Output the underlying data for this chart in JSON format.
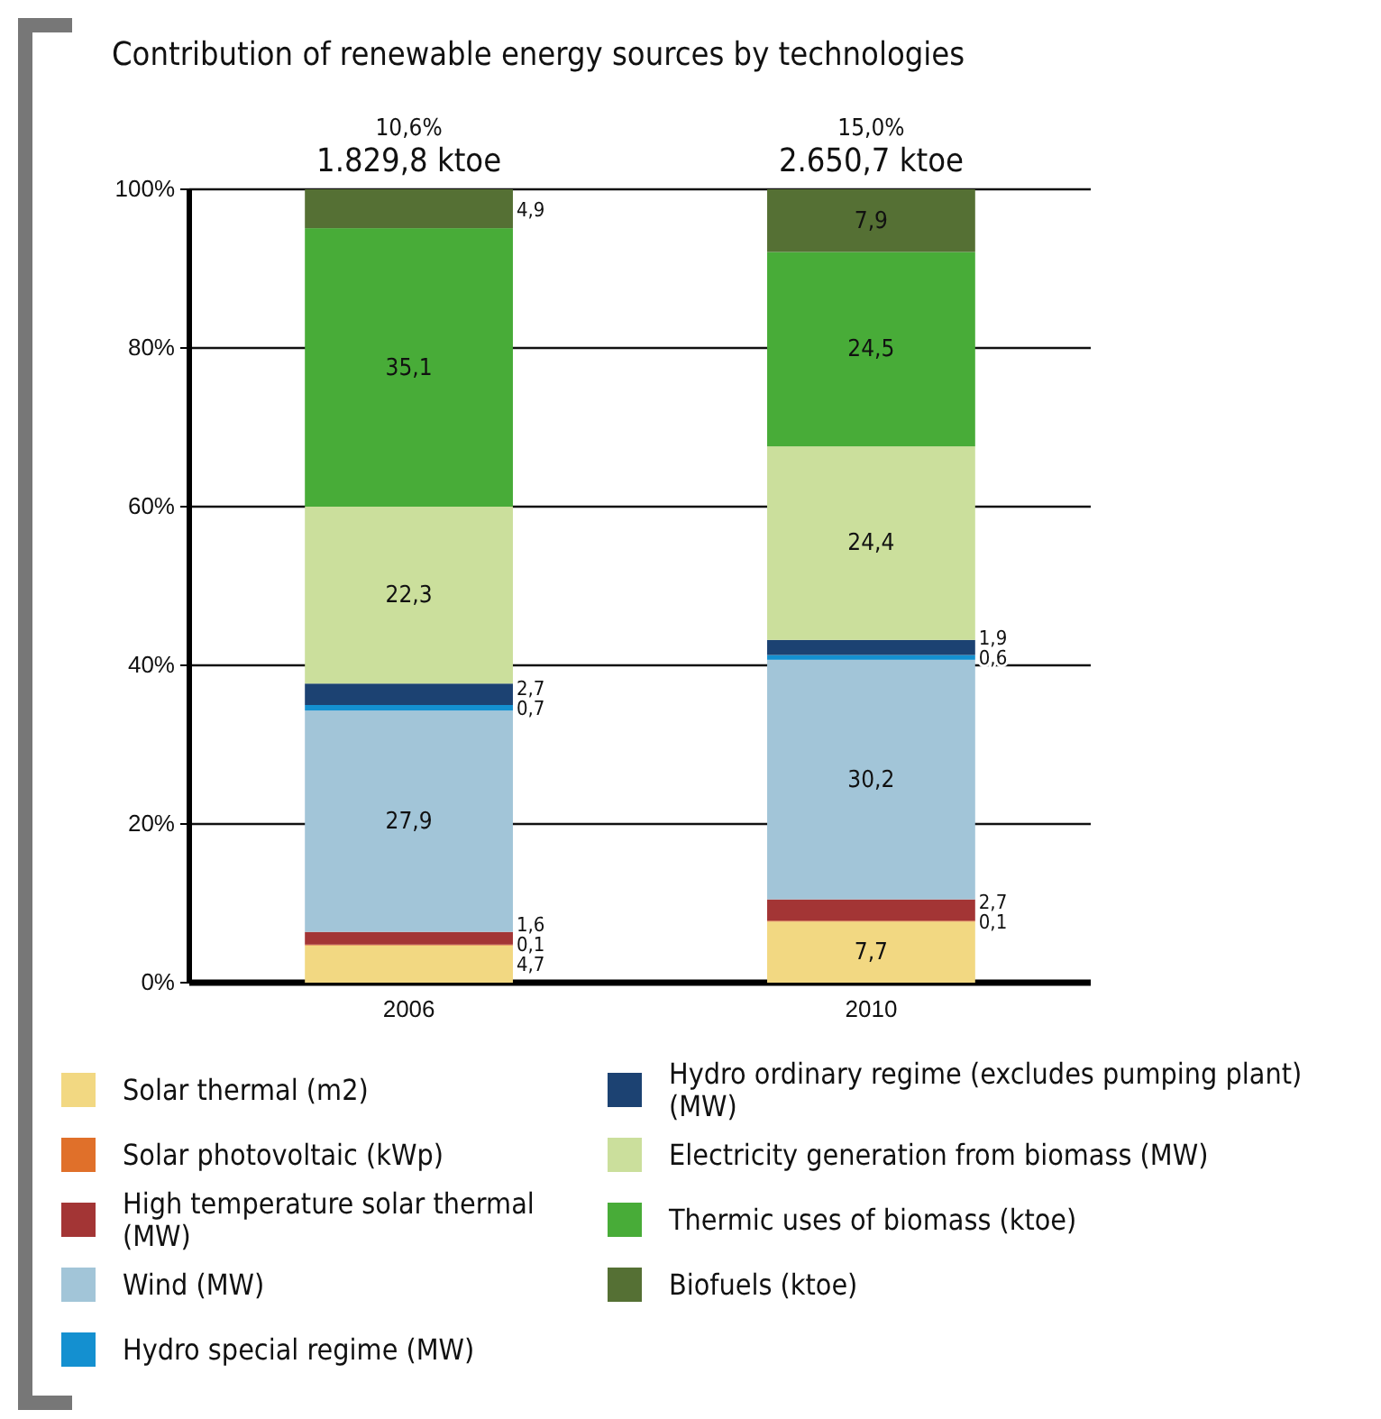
{
  "chart_data": {
    "type": "bar",
    "title": "Contribution of renewable energy sources by technologies",
    "categories": [
      "2006",
      "2010"
    ],
    "stacked": true,
    "grid": "y",
    "legend": "bottom",
    "ylim": [
      0,
      100
    ],
    "yticks": [
      {
        "value": 0,
        "label": "0%"
      },
      {
        "value": 20,
        "label": "20%"
      },
      {
        "value": 40,
        "label": "40%"
      },
      {
        "value": 60,
        "label": "60%"
      },
      {
        "value": 80,
        "label": "80%"
      },
      {
        "value": 100,
        "label": "100%"
      }
    ],
    "series": [
      {
        "name": "Solar thermal (m2)",
        "color": "#f2d882",
        "values": [
          4.7,
          7.7
        ],
        "value_labels": [
          "4,7",
          "7,7"
        ]
      },
      {
        "name": "Solar photovoltaic (kWp)",
        "color": "#e0702a",
        "values": [
          0.1,
          0.1
        ],
        "value_labels": [
          "0,1",
          "0,1"
        ]
      },
      {
        "name": "High temperature solar thermal (MW)",
        "color": "#a33535",
        "values": [
          1.6,
          2.7
        ],
        "value_labels": [
          "1,6",
          "2,7"
        ]
      },
      {
        "name": "Wind (MW)",
        "color": "#a2c5d8",
        "values": [
          27.9,
          30.2
        ],
        "value_labels": [
          "27,9",
          "30,2"
        ]
      },
      {
        "name": "Hydro special regime (MW)",
        "color": "#1490d0",
        "values": [
          0.7,
          0.6
        ],
        "value_labels": [
          "0,7",
          "0,6"
        ]
      },
      {
        "name": "Hydro ordinary regime (excludes pumping plant) (MW)",
        "color": "#1c4272",
        "values": [
          2.7,
          1.9
        ],
        "value_labels": [
          "2,7",
          "1,9"
        ]
      },
      {
        "name": "Electricity generation from biomass (MW)",
        "color": "#cbdf9c",
        "values": [
          22.3,
          24.4
        ],
        "value_labels": [
          "22,3",
          "24,4"
        ]
      },
      {
        "name": "Thermic uses of biomass (ktoe)",
        "color": "#48ac38",
        "values": [
          35.1,
          24.5
        ],
        "value_labels": [
          "35,1",
          "24,5"
        ]
      },
      {
        "name": "Biofuels (ktoe)",
        "color": "#557034",
        "values": [
          4.9,
          7.9
        ],
        "value_labels": [
          "4,9",
          "7,9"
        ]
      }
    ],
    "annotations": [
      {
        "text": "10,6%",
        "x": "2006",
        "y": 100
      },
      {
        "text": "1.829,8 ktoe",
        "x": "2006",
        "y": 100
      },
      {
        "text": "15,0%",
        "x": "2010",
        "y": 100
      },
      {
        "text": "2.650,7 ktoe",
        "x": "2010",
        "y": 100
      }
    ]
  }
}
